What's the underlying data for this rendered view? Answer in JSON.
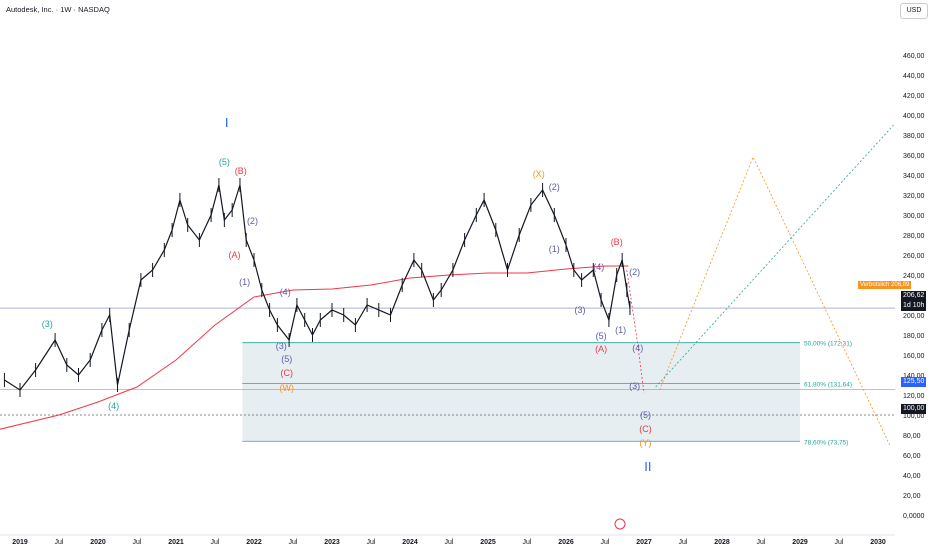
{
  "header": {
    "title": "Autodesk, Inc. · 1W · NASDAQ",
    "currency": "USD"
  },
  "colors": {
    "up": "#131722",
    "ma": "#f23645",
    "fib": "#26a69a",
    "zone": "#d5e3ea",
    "blue": "#2962ff",
    "orange": "#f7931e",
    "purple": "#5c5ca8"
  },
  "price_tags": {
    "flag_label": "Verbotslich",
    "flag_value": "206,89",
    "last_price": "206,62",
    "countdown": "1d 10h",
    "level_1": "125,50",
    "level_2": "100,00"
  },
  "chart_data": {
    "type": "line",
    "title": "Autodesk, Inc. · 1W · NASDAQ",
    "ylim": [
      0,
      480
    ],
    "xlim": [
      "2018-10",
      "2030-03"
    ],
    "grid": false,
    "y_ticks": [
      "0,0000",
      "20,00",
      "40,00",
      "60,00",
      "80,00",
      "100,00",
      "120,00",
      "140,00",
      "160,00",
      "180,00",
      "200,00",
      "220,00",
      "240,00",
      "260,00",
      "280,00",
      "300,00",
      "320,00",
      "340,00",
      "360,00",
      "380,00",
      "400,00",
      "420,00",
      "440,00",
      "460,00"
    ],
    "x_ticks": [
      "2019",
      "Jul",
      "2020",
      "Jul",
      "2021",
      "Jul",
      "2022",
      "Jul",
      "2023",
      "Jul",
      "2024",
      "Jul",
      "2025",
      "Jul",
      "2026",
      "Jul",
      "2027",
      "Jul",
      "2028",
      "Jul",
      "2029",
      "Jul",
      "2030"
    ],
    "price_series": [
      {
        "t": 2018.8,
        "v": 135
      },
      {
        "t": 2019.0,
        "v": 125
      },
      {
        "t": 2019.2,
        "v": 145
      },
      {
        "t": 2019.45,
        "v": 175
      },
      {
        "t": 2019.6,
        "v": 150
      },
      {
        "t": 2019.75,
        "v": 140
      },
      {
        "t": 2019.9,
        "v": 155
      },
      {
        "t": 2020.05,
        "v": 185
      },
      {
        "t": 2020.15,
        "v": 200
      },
      {
        "t": 2020.25,
        "v": 130
      },
      {
        "t": 2020.4,
        "v": 185
      },
      {
        "t": 2020.55,
        "v": 235
      },
      {
        "t": 2020.7,
        "v": 245
      },
      {
        "t": 2020.85,
        "v": 265
      },
      {
        "t": 2020.95,
        "v": 285
      },
      {
        "t": 2021.05,
        "v": 315
      },
      {
        "t": 2021.15,
        "v": 290
      },
      {
        "t": 2021.3,
        "v": 275
      },
      {
        "t": 2021.45,
        "v": 300
      },
      {
        "t": 2021.55,
        "v": 330
      },
      {
        "t": 2021.62,
        "v": 295
      },
      {
        "t": 2021.72,
        "v": 305
      },
      {
        "t": 2021.82,
        "v": 330
      },
      {
        "t": 2021.9,
        "v": 275
      },
      {
        "t": 2022.0,
        "v": 255
      },
      {
        "t": 2022.1,
        "v": 225
      },
      {
        "t": 2022.2,
        "v": 205
      },
      {
        "t": 2022.3,
        "v": 190
      },
      {
        "t": 2022.45,
        "v": 175
      },
      {
        "t": 2022.55,
        "v": 210
      },
      {
        "t": 2022.65,
        "v": 195
      },
      {
        "t": 2022.75,
        "v": 180
      },
      {
        "t": 2022.85,
        "v": 195
      },
      {
        "t": 2023.0,
        "v": 205
      },
      {
        "t": 2023.15,
        "v": 200
      },
      {
        "t": 2023.3,
        "v": 190
      },
      {
        "t": 2023.45,
        "v": 210
      },
      {
        "t": 2023.6,
        "v": 205
      },
      {
        "t": 2023.75,
        "v": 200
      },
      {
        "t": 2023.9,
        "v": 230
      },
      {
        "t": 2024.05,
        "v": 255
      },
      {
        "t": 2024.15,
        "v": 245
      },
      {
        "t": 2024.3,
        "v": 215
      },
      {
        "t": 2024.4,
        "v": 225
      },
      {
        "t": 2024.55,
        "v": 245
      },
      {
        "t": 2024.7,
        "v": 275
      },
      {
        "t": 2024.85,
        "v": 300
      },
      {
        "t": 2024.95,
        "v": 315
      },
      {
        "t": 2025.1,
        "v": 285
      },
      {
        "t": 2025.25,
        "v": 245
      },
      {
        "t": 2025.4,
        "v": 280
      },
      {
        "t": 2025.55,
        "v": 310
      },
      {
        "t": 2025.7,
        "v": 325
      },
      {
        "t": 2025.85,
        "v": 300
      },
      {
        "t": 2026.0,
        "v": 270
      },
      {
        "t": 2026.1,
        "v": 245
      },
      {
        "t": 2026.2,
        "v": 235
      },
      {
        "t": 2026.35,
        "v": 245
      },
      {
        "t": 2026.45,
        "v": 215
      },
      {
        "t": 2026.55,
        "v": 195
      },
      {
        "t": 2026.65,
        "v": 240
      },
      {
        "t": 2026.72,
        "v": 255
      },
      {
        "t": 2026.78,
        "v": 225
      },
      {
        "t": 2026.82,
        "v": 207
      }
    ],
    "moving_average": [
      {
        "t": 2018.7,
        "v": 85
      },
      {
        "t": 2019.5,
        "v": 100
      },
      {
        "t": 2020.0,
        "v": 113
      },
      {
        "t": 2020.5,
        "v": 128
      },
      {
        "t": 2021.0,
        "v": 155
      },
      {
        "t": 2021.5,
        "v": 190
      },
      {
        "t": 2022.0,
        "v": 218
      },
      {
        "t": 2022.5,
        "v": 225
      },
      {
        "t": 2023.0,
        "v": 226
      },
      {
        "t": 2023.5,
        "v": 230
      },
      {
        "t": 2024.0,
        "v": 237
      },
      {
        "t": 2024.5,
        "v": 240
      },
      {
        "t": 2025.0,
        "v": 242
      },
      {
        "t": 2025.5,
        "v": 242
      },
      {
        "t": 2026.0,
        "v": 246
      },
      {
        "t": 2026.5,
        "v": 249
      },
      {
        "t": 2026.8,
        "v": 249
      }
    ],
    "fib_levels": [
      {
        "label": "50,00% (172,31)",
        "value": 172.31
      },
      {
        "label": "61,80% (131,64)",
        "value": 131.64
      },
      {
        "label": "78,60% (73,75)",
        "value": 73.75
      }
    ],
    "horizontal_lines": [
      206.89,
      125.5,
      100.0
    ],
    "wave_labels": [
      {
        "text": "I",
        "t": 2021.65,
        "v": 388,
        "color": "blue",
        "size": 13
      },
      {
        "text": "(5)",
        "t": 2021.62,
        "v": 350,
        "color": "fib",
        "size": 9
      },
      {
        "text": "(B)",
        "t": 2021.83,
        "v": 341,
        "color": "ma",
        "size": 9
      },
      {
        "text": "(2)",
        "t": 2021.98,
        "v": 291,
        "color": "purple",
        "size": 9
      },
      {
        "text": "(A)",
        "t": 2021.75,
        "v": 257,
        "color": "ma",
        "size": 9
      },
      {
        "text": "(1)",
        "t": 2021.88,
        "v": 230,
        "color": "purple",
        "size": 9
      },
      {
        "text": "(4)",
        "t": 2022.4,
        "v": 220,
        "color": "purple",
        "size": 9
      },
      {
        "text": "(3)",
        "t": 2022.35,
        "v": 166,
        "color": "purple",
        "size": 9
      },
      {
        "text": "(5)",
        "t": 2022.42,
        "v": 153,
        "color": "purple",
        "size": 9
      },
      {
        "text": "(C)",
        "t": 2022.42,
        "v": 139,
        "color": "ma",
        "size": 9
      },
      {
        "text": "(W)",
        "t": 2022.42,
        "v": 124,
        "color": "orange",
        "size": 9
      },
      {
        "text": "(3)",
        "t": 2019.35,
        "v": 188,
        "color": "fib",
        "size": 9
      },
      {
        "text": "(4)",
        "t": 2020.2,
        "v": 106,
        "color": "fib",
        "size": 9
      },
      {
        "text": "(X)",
        "t": 2025.65,
        "v": 338,
        "color": "orange",
        "size": 9
      },
      {
        "text": "(2)",
        "t": 2025.85,
        "v": 325,
        "color": "purple",
        "size": 9
      },
      {
        "text": "(1)",
        "t": 2025.85,
        "v": 263,
        "color": "purple",
        "size": 9
      },
      {
        "text": "(B)",
        "t": 2026.65,
        "v": 270,
        "color": "ma",
        "size": 9
      },
      {
        "text": "(4)",
        "t": 2026.42,
        "v": 245,
        "color": "purple",
        "size": 9
      },
      {
        "text": "(2)",
        "t": 2026.88,
        "v": 240,
        "color": "purple",
        "size": 9
      },
      {
        "text": "(3)",
        "t": 2026.18,
        "v": 202,
        "color": "purple",
        "size": 9
      },
      {
        "text": "(1)",
        "t": 2026.7,
        "v": 182,
        "color": "purple",
        "size": 9
      },
      {
        "text": "(5)",
        "t": 2026.45,
        "v": 176,
        "color": "purple",
        "size": 9
      },
      {
        "text": "(A)",
        "t": 2026.45,
        "v": 163,
        "color": "ma",
        "size": 9
      },
      {
        "text": "(4)",
        "t": 2026.92,
        "v": 164,
        "color": "purple",
        "size": 9
      },
      {
        "text": "(3)",
        "t": 2026.88,
        "v": 126,
        "color": "purple",
        "size": 9
      },
      {
        "text": "(5)",
        "t": 2027.02,
        "v": 97,
        "color": "purple",
        "size": 9
      },
      {
        "text": "(C)",
        "t": 2027.02,
        "v": 83,
        "color": "ma",
        "size": 9
      },
      {
        "text": "(Y)",
        "t": 2027.02,
        "v": 69,
        "color": "orange",
        "size": 9
      },
      {
        "text": "II",
        "t": 2027.05,
        "v": 44,
        "color": "blue",
        "size": 13
      }
    ],
    "projection_paths": [
      {
        "color": "ma",
        "points": [
          {
            "t": 2026.78,
            "v": 245
          },
          {
            "t": 2026.92,
            "v": 170
          },
          {
            "t": 2027.0,
            "v": 122
          }
        ]
      },
      {
        "color": "orange",
        "points": [
          {
            "t": 2027.2,
            "v": 125
          },
          {
            "t": 2028.4,
            "v": 358
          },
          {
            "t": 2030.15,
            "v": 70
          }
        ]
      },
      {
        "color": "fib",
        "points": [
          {
            "t": 2027.15,
            "v": 128
          },
          {
            "t": 2030.2,
            "v": 390
          }
        ]
      }
    ],
    "zone": {
      "t_start": 2021.85,
      "t_end": 2029.0,
      "top": 172.31,
      "bottom": 73.75
    }
  }
}
